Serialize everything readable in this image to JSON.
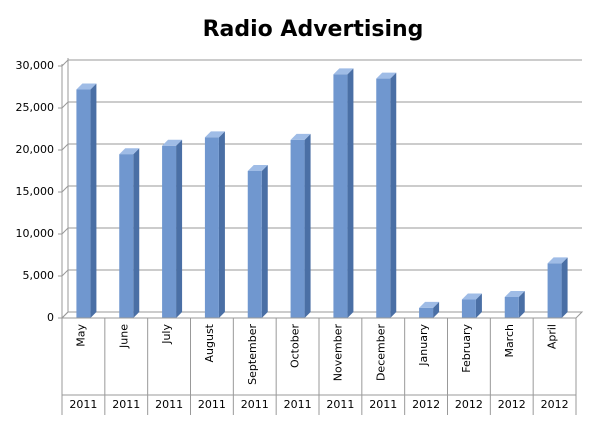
{
  "chart_data": {
    "type": "bar3d",
    "title": "Radio Advertising",
    "categories": [
      "May",
      "June",
      "July",
      "August",
      "September",
      "October",
      "November",
      "December",
      "January",
      "February",
      "March",
      "April"
    ],
    "years": [
      "2011",
      "2011",
      "2011",
      "2011",
      "2011",
      "2011",
      "2011",
      "2011",
      "2012",
      "2012",
      "2012",
      "2012"
    ],
    "values": [
      27200,
      19500,
      20500,
      21500,
      17500,
      21200,
      29000,
      28500,
      1200,
      2200,
      2500,
      6500
    ],
    "color": "#7097cf",
    "ylim": [
      0,
      30000
    ],
    "yticks": [
      0,
      {
        "value": 5000,
        "label": "5,000"
      },
      {
        "value": 10000,
        "label": "10,000"
      },
      {
        "value": 15000,
        "label": "15,000"
      },
      {
        "value": 20000,
        "label": "20,000"
      },
      {
        "value": 25000,
        "label": "25,000"
      },
      {
        "value": 30000,
        "label": "30,000"
      }
    ],
    "grid": true
  }
}
